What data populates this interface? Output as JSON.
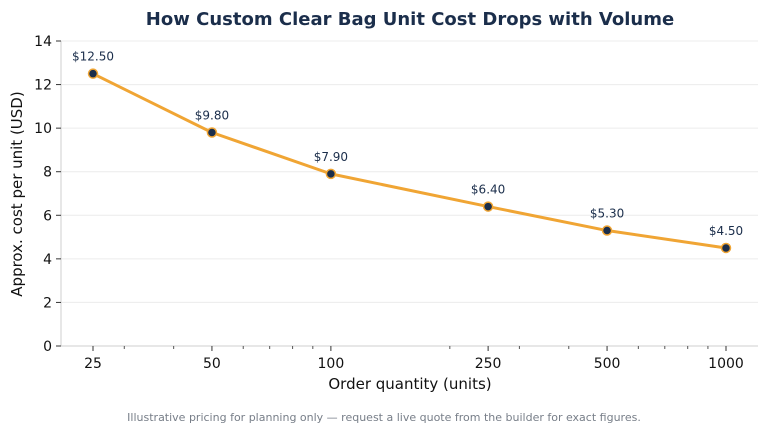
{
  "chart_data": {
    "type": "line",
    "title": "How Custom Clear Bag Unit Cost Drops with Volume",
    "xlabel": "Order quantity (units)",
    "ylabel": "Approx. cost per unit (USD)",
    "x_scale": "log",
    "x": [
      25,
      50,
      100,
      250,
      500,
      1000
    ],
    "x_tick_labels": [
      "25",
      "50",
      "100",
      "250",
      "500",
      "1000"
    ],
    "series": [
      {
        "values": [
          12.5,
          9.8,
          7.9,
          6.4,
          5.3,
          4.5
        ],
        "data_labels": [
          "$12.50",
          "$9.80",
          "$7.90",
          "$6.40",
          "$5.30",
          "$4.50"
        ],
        "color": "#f0a534",
        "marker_color": "#1b2e4b"
      }
    ],
    "ylim": [
      0,
      14
    ],
    "y_ticks": [
      0,
      2,
      4,
      6,
      8,
      10,
      12,
      14
    ],
    "grid": "horizontal",
    "footnote": "Illustrative pricing for planning only — request a live quote from the builder for exact figures."
  }
}
